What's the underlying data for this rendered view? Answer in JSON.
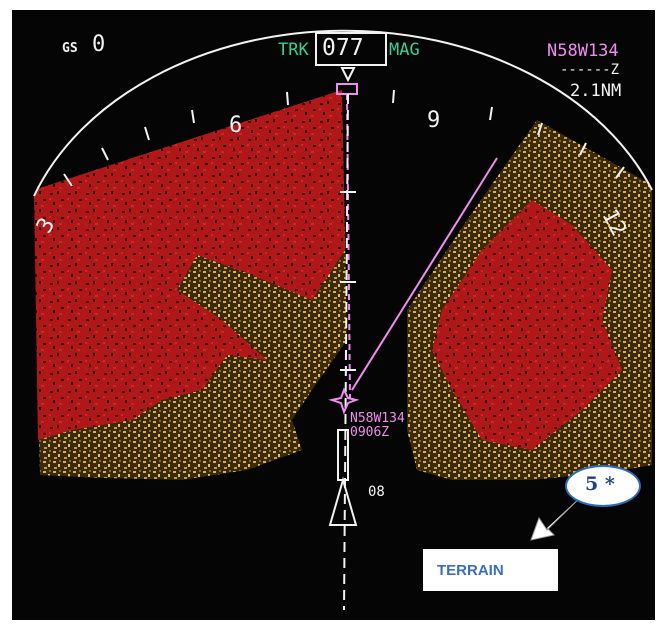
{
  "groundspeed": {
    "label": "GS",
    "value": "0"
  },
  "track": {
    "label": "TRK",
    "value": "077",
    "reference": "MAG"
  },
  "waypoint": {
    "name": "N58W134",
    "eta": "------Z",
    "distance": "2.1NM"
  },
  "compass_scale": [
    "3",
    "6",
    "9",
    "12"
  ],
  "fix": {
    "name": "N58W134",
    "time": "0906Z"
  },
  "runway": {
    "label": "08"
  },
  "display_mode": {
    "label": "TERRAIN",
    "color": "#3a6cc8"
  },
  "callout": {
    "text": "5 *"
  },
  "colors": {
    "terrain_high": "#b01818",
    "terrain_mid": "#d7b24a",
    "background": "#050505",
    "symbology": "#f2f2f2",
    "route": "#f08cf0",
    "heading_text": "#2fd39a"
  }
}
